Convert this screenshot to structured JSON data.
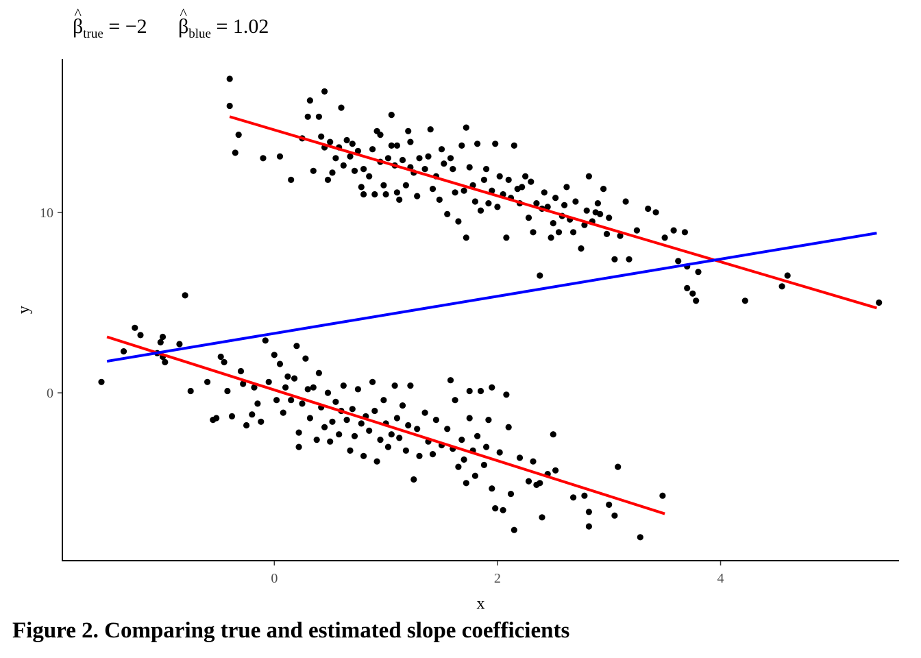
{
  "title": {
    "beta_symbol": "β",
    "hat_symbol": "^",
    "eq1_sub": "true",
    "eq1_rhs": " = −2",
    "eq2_sub": "blue",
    "eq2_rhs": " = 1.02"
  },
  "caption": "Figure 2. Comparing true and estimated slope coefficients",
  "chart_data": {
    "type": "scatter",
    "xlabel": "x",
    "ylabel": "y",
    "xlim": [
      -1.9,
      5.6
    ],
    "ylim": [
      -9.3,
      18.5
    ],
    "x_ticks": [
      0,
      2,
      4
    ],
    "y_ticks": [
      0,
      10
    ],
    "grid": false,
    "legend": "none",
    "point_color": "#000000",
    "upper_line_color": "#ff0000",
    "lower_line_color": "#ff0000",
    "blue_line_color": "#0000ff",
    "lines": [
      {
        "x": [
          -0.4,
          5.4
        ],
        "y": [
          15.3,
          4.7
        ],
        "color": "#ff0000"
      },
      {
        "x": [
          -1.5,
          3.5
        ],
        "y": [
          3.1,
          -6.7
        ],
        "color": "#ff0000"
      },
      {
        "x": [
          -1.5,
          5.4
        ],
        "y": [
          1.75,
          8.85
        ],
        "color": "#0000ff"
      }
    ],
    "points": [
      [
        -0.4,
        17.4
      ],
      [
        -0.4,
        15.9
      ],
      [
        -0.35,
        13.3
      ],
      [
        -0.32,
        14.3
      ],
      [
        -0.1,
        13.0
      ],
      [
        0.05,
        13.1
      ],
      [
        0.15,
        11.8
      ],
      [
        0.25,
        14.1
      ],
      [
        0.3,
        15.3
      ],
      [
        0.32,
        16.2
      ],
      [
        0.35,
        12.3
      ],
      [
        0.4,
        15.3
      ],
      [
        0.42,
        14.2
      ],
      [
        0.45,
        16.7
      ],
      [
        0.45,
        13.6
      ],
      [
        0.48,
        11.8
      ],
      [
        0.5,
        13.9
      ],
      [
        0.52,
        12.2
      ],
      [
        0.55,
        13.0
      ],
      [
        0.58,
        13.6
      ],
      [
        0.6,
        15.8
      ],
      [
        0.62,
        12.6
      ],
      [
        0.65,
        14.0
      ],
      [
        0.68,
        13.1
      ],
      [
        0.7,
        13.8
      ],
      [
        0.72,
        12.3
      ],
      [
        0.75,
        13.4
      ],
      [
        0.78,
        11.4
      ],
      [
        0.8,
        11.0
      ],
      [
        0.8,
        12.4
      ],
      [
        0.85,
        12.0
      ],
      [
        0.88,
        13.5
      ],
      [
        0.9,
        11.0
      ],
      [
        0.92,
        14.5
      ],
      [
        0.95,
        14.3
      ],
      [
        0.95,
        12.8
      ],
      [
        0.98,
        11.5
      ],
      [
        1.0,
        11.0
      ],
      [
        1.02,
        13.0
      ],
      [
        1.05,
        15.4
      ],
      [
        1.05,
        13.7
      ],
      [
        1.08,
        12.6
      ],
      [
        1.1,
        11.1
      ],
      [
        1.1,
        13.7
      ],
      [
        1.12,
        10.7
      ],
      [
        1.15,
        12.9
      ],
      [
        1.18,
        11.5
      ],
      [
        1.2,
        14.5
      ],
      [
        1.22,
        13.9
      ],
      [
        1.22,
        12.5
      ],
      [
        1.25,
        12.2
      ],
      [
        1.28,
        10.9
      ],
      [
        1.3,
        13.0
      ],
      [
        1.35,
        12.4
      ],
      [
        1.38,
        13.1
      ],
      [
        1.4,
        14.6
      ],
      [
        1.42,
        11.3
      ],
      [
        1.45,
        12.0
      ],
      [
        1.48,
        10.7
      ],
      [
        1.5,
        13.5
      ],
      [
        1.52,
        12.7
      ],
      [
        1.55,
        9.9
      ],
      [
        1.58,
        13.0
      ],
      [
        1.6,
        12.4
      ],
      [
        1.62,
        11.1
      ],
      [
        1.65,
        9.5
      ],
      [
        1.68,
        13.7
      ],
      [
        1.7,
        11.2
      ],
      [
        1.72,
        14.7
      ],
      [
        1.72,
        8.6
      ],
      [
        1.75,
        12.5
      ],
      [
        1.78,
        11.5
      ],
      [
        1.8,
        10.6
      ],
      [
        1.82,
        13.8
      ],
      [
        1.85,
        10.1
      ],
      [
        1.88,
        11.8
      ],
      [
        1.9,
        12.4
      ],
      [
        1.92,
        10.5
      ],
      [
        1.95,
        11.2
      ],
      [
        1.98,
        13.8
      ],
      [
        2.0,
        10.3
      ],
      [
        2.02,
        12.0
      ],
      [
        2.05,
        11.0
      ],
      [
        2.08,
        8.6
      ],
      [
        2.1,
        11.8
      ],
      [
        2.12,
        10.8
      ],
      [
        2.15,
        13.7
      ],
      [
        2.18,
        11.3
      ],
      [
        2.2,
        10.5
      ],
      [
        2.22,
        11.4
      ],
      [
        2.25,
        12.0
      ],
      [
        2.28,
        9.7
      ],
      [
        2.3,
        11.7
      ],
      [
        2.32,
        8.9
      ],
      [
        2.35,
        10.5
      ],
      [
        2.38,
        6.5
      ],
      [
        2.4,
        10.2
      ],
      [
        2.42,
        11.1
      ],
      [
        2.45,
        10.3
      ],
      [
        2.48,
        8.6
      ],
      [
        2.5,
        9.4
      ],
      [
        2.52,
        10.8
      ],
      [
        2.55,
        8.9
      ],
      [
        2.58,
        9.8
      ],
      [
        2.6,
        10.4
      ],
      [
        2.62,
        11.4
      ],
      [
        2.65,
        9.6
      ],
      [
        2.68,
        8.9
      ],
      [
        2.7,
        10.6
      ],
      [
        2.75,
        8.0
      ],
      [
        2.78,
        9.3
      ],
      [
        2.8,
        10.1
      ],
      [
        2.82,
        12.0
      ],
      [
        2.85,
        9.5
      ],
      [
        2.88,
        10.0
      ],
      [
        2.9,
        10.5
      ],
      [
        2.92,
        9.9
      ],
      [
        2.95,
        11.3
      ],
      [
        2.98,
        8.8
      ],
      [
        3.0,
        9.7
      ],
      [
        3.05,
        7.4
      ],
      [
        3.1,
        8.7
      ],
      [
        3.15,
        10.6
      ],
      [
        3.18,
        7.4
      ],
      [
        3.25,
        9.0
      ],
      [
        3.35,
        10.2
      ],
      [
        3.42,
        10.0
      ],
      [
        3.5,
        8.6
      ],
      [
        3.58,
        9.0
      ],
      [
        3.62,
        7.3
      ],
      [
        3.68,
        8.9
      ],
      [
        3.7,
        7.0
      ],
      [
        3.7,
        5.8
      ],
      [
        3.75,
        5.5
      ],
      [
        3.78,
        5.1
      ],
      [
        3.8,
        6.7
      ],
      [
        4.22,
        5.1
      ],
      [
        4.55,
        5.9
      ],
      [
        4.6,
        6.5
      ],
      [
        5.42,
        5.0
      ],
      [
        -1.55,
        0.6
      ],
      [
        -1.35,
        2.3
      ],
      [
        -1.25,
        3.6
      ],
      [
        -1.2,
        3.2
      ],
      [
        -1.05,
        2.2
      ],
      [
        -1.02,
        2.8
      ],
      [
        -1.0,
        2.0
      ],
      [
        -1.0,
        3.1
      ],
      [
        -0.98,
        1.7
      ],
      [
        -0.85,
        2.7
      ],
      [
        -0.8,
        5.4
      ],
      [
        -0.75,
        0.1
      ],
      [
        -0.6,
        0.6
      ],
      [
        -0.55,
        -1.5
      ],
      [
        -0.52,
        -1.4
      ],
      [
        -0.48,
        2.0
      ],
      [
        -0.45,
        1.7
      ],
      [
        -0.42,
        0.1
      ],
      [
        -0.38,
        -1.3
      ],
      [
        -0.3,
        1.2
      ],
      [
        -0.28,
        0.5
      ],
      [
        -0.25,
        -1.8
      ],
      [
        -0.2,
        -1.2
      ],
      [
        -0.18,
        0.3
      ],
      [
        -0.15,
        -0.6
      ],
      [
        -0.12,
        -1.6
      ],
      [
        -0.08,
        2.9
      ],
      [
        -0.05,
        0.6
      ],
      [
        0.0,
        2.1
      ],
      [
        0.02,
        -0.4
      ],
      [
        0.05,
        1.6
      ],
      [
        0.08,
        -1.1
      ],
      [
        0.1,
        0.3
      ],
      [
        0.12,
        0.9
      ],
      [
        0.15,
        -0.4
      ],
      [
        0.18,
        0.8
      ],
      [
        0.2,
        2.6
      ],
      [
        0.22,
        -2.2
      ],
      [
        0.22,
        -3.0
      ],
      [
        0.25,
        -0.6
      ],
      [
        0.28,
        1.9
      ],
      [
        0.3,
        0.2
      ],
      [
        0.32,
        -1.4
      ],
      [
        0.35,
        0.3
      ],
      [
        0.38,
        -2.6
      ],
      [
        0.4,
        1.1
      ],
      [
        0.42,
        -0.8
      ],
      [
        0.45,
        -1.9
      ],
      [
        0.48,
        0.0
      ],
      [
        0.5,
        -2.7
      ],
      [
        0.52,
        -1.6
      ],
      [
        0.55,
        -0.5
      ],
      [
        0.58,
        -2.3
      ],
      [
        0.6,
        -1.0
      ],
      [
        0.62,
        0.4
      ],
      [
        0.65,
        -1.5
      ],
      [
        0.68,
        -3.2
      ],
      [
        0.7,
        -0.9
      ],
      [
        0.72,
        -2.4
      ],
      [
        0.75,
        0.2
      ],
      [
        0.78,
        -1.7
      ],
      [
        0.8,
        -3.5
      ],
      [
        0.82,
        -1.3
      ],
      [
        0.85,
        -2.1
      ],
      [
        0.88,
        0.6
      ],
      [
        0.9,
        -1.0
      ],
      [
        0.92,
        -3.8
      ],
      [
        0.95,
        -2.6
      ],
      [
        0.98,
        -0.4
      ],
      [
        1.0,
        -1.7
      ],
      [
        1.02,
        -3.0
      ],
      [
        1.05,
        -2.3
      ],
      [
        1.08,
        0.4
      ],
      [
        1.1,
        -1.4
      ],
      [
        1.12,
        -2.5
      ],
      [
        1.15,
        -0.7
      ],
      [
        1.18,
        -3.2
      ],
      [
        1.2,
        -1.8
      ],
      [
        1.22,
        0.4
      ],
      [
        1.25,
        -4.8
      ],
      [
        1.28,
        -2.0
      ],
      [
        1.3,
        -3.5
      ],
      [
        1.35,
        -1.1
      ],
      [
        1.38,
        -2.7
      ],
      [
        1.42,
        -3.4
      ],
      [
        1.45,
        -1.5
      ],
      [
        1.5,
        -2.9
      ],
      [
        1.55,
        -2.0
      ],
      [
        1.58,
        0.7
      ],
      [
        1.6,
        -3.1
      ],
      [
        1.62,
        -0.4
      ],
      [
        1.65,
        -4.1
      ],
      [
        1.68,
        -2.6
      ],
      [
        1.7,
        -3.7
      ],
      [
        1.72,
        -5.0
      ],
      [
        1.75,
        -1.4
      ],
      [
        1.75,
        0.1
      ],
      [
        1.78,
        -3.2
      ],
      [
        1.8,
        -4.6
      ],
      [
        1.82,
        -2.4
      ],
      [
        1.85,
        0.1
      ],
      [
        1.88,
        -4.0
      ],
      [
        1.9,
        -3.0
      ],
      [
        1.92,
        -1.5
      ],
      [
        1.95,
        -5.3
      ],
      [
        1.95,
        0.3
      ],
      [
        1.98,
        -6.4
      ],
      [
        2.02,
        -3.3
      ],
      [
        2.05,
        -6.5
      ],
      [
        2.08,
        -0.1
      ],
      [
        2.1,
        -1.9
      ],
      [
        2.12,
        -5.6
      ],
      [
        2.15,
        -7.6
      ],
      [
        2.2,
        -3.6
      ],
      [
        2.28,
        -4.9
      ],
      [
        2.32,
        -3.8
      ],
      [
        2.35,
        -5.1
      ],
      [
        2.38,
        -5.0
      ],
      [
        2.4,
        -6.9
      ],
      [
        2.45,
        -4.5
      ],
      [
        2.5,
        -2.3
      ],
      [
        2.52,
        -4.3
      ],
      [
        2.68,
        -5.8
      ],
      [
        2.78,
        -5.7
      ],
      [
        2.82,
        -6.6
      ],
      [
        2.82,
        -7.4
      ],
      [
        3.0,
        -6.2
      ],
      [
        3.05,
        -6.8
      ],
      [
        3.08,
        -4.1
      ],
      [
        3.28,
        -8.0
      ],
      [
        3.48,
        -5.7
      ]
    ]
  }
}
